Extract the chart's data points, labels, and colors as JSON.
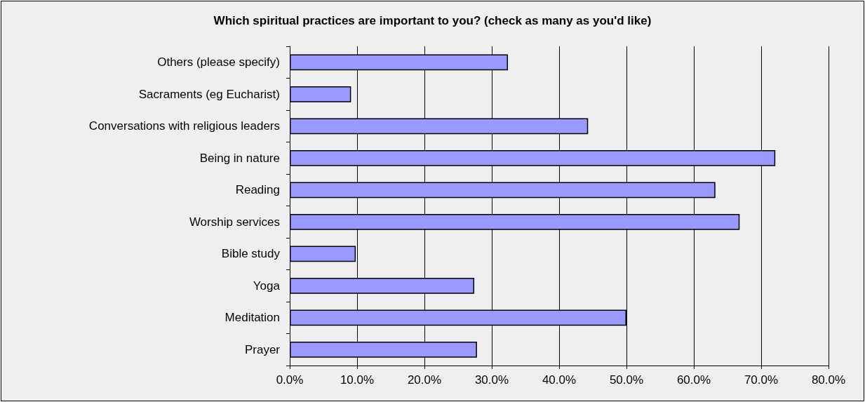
{
  "chart_data": {
    "type": "bar",
    "orientation": "horizontal",
    "title": "Which spiritual practices are important to you? (check as many as you'd like)",
    "categories": [
      "Others (please specify)",
      "Sacraments (eg Eucharist)",
      "Conversations with religious leaders",
      "Being in nature",
      "Reading",
      "Worship services",
      "Bible study",
      "Yoga",
      "Meditation",
      "Prayer"
    ],
    "values": [
      32.4,
      9.1,
      44.3,
      72.1,
      63.2,
      66.8,
      9.8,
      27.4,
      50.0,
      27.8
    ],
    "color": "#9999ff",
    "xlim": [
      0,
      80
    ],
    "xticks": [
      {
        "value": 0,
        "label": "0.0%"
      },
      {
        "value": 10,
        "label": "10.0%"
      },
      {
        "value": 20,
        "label": "20.0%"
      },
      {
        "value": 30,
        "label": "30.0%"
      },
      {
        "value": 40,
        "label": "40.0%"
      },
      {
        "value": 50,
        "label": "50.0%"
      },
      {
        "value": 60,
        "label": "60.0%"
      },
      {
        "value": 70,
        "label": "70.0%"
      },
      {
        "value": 80,
        "label": "80.0%"
      }
    ],
    "grid": "x"
  }
}
